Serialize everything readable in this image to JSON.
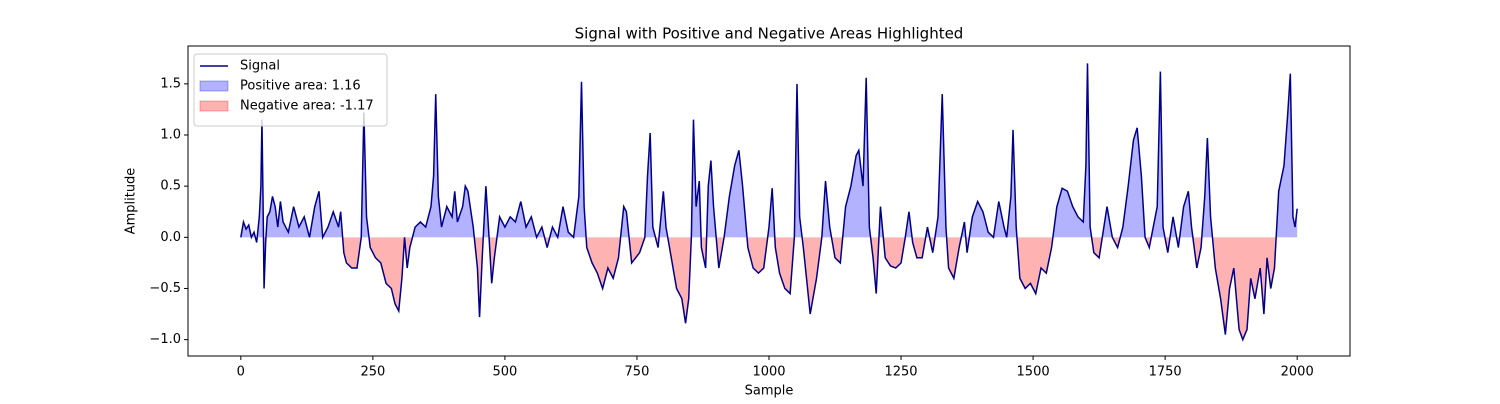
{
  "chart_data": {
    "type": "line",
    "title": "Signal with Positive and Negative Areas Highlighted",
    "xlabel": "Sample",
    "ylabel": "Amplitude",
    "xlim": [
      -100,
      2100
    ],
    "ylim": [
      -1.16,
      1.87
    ],
    "xticks": [
      0,
      250,
      500,
      750,
      1000,
      1250,
      1500,
      1750,
      2000
    ],
    "yticks": [
      {
        "value": -1,
        "label": "−1.0"
      },
      {
        "value": -0.5,
        "label": "−0.5"
      },
      {
        "value": 0,
        "label": "0.0"
      },
      {
        "value": 0.5,
        "label": "0.5"
      },
      {
        "value": 1,
        "label": "1.0"
      },
      {
        "value": 1.5,
        "label": "1.5"
      }
    ],
    "legend": "upper left",
    "fills": [
      {
        "name": "Positive area: 1.16",
        "color": "#0000ff",
        "where": "above"
      },
      {
        "name": "Negative area: -1.17",
        "color": "#ff0000",
        "where": "below"
      }
    ],
    "series": [
      {
        "name": "Signal",
        "color": "#00008b",
        "x": [
          0,
          5,
          10,
          15,
          20,
          25,
          30,
          35,
          38,
          40,
          42,
          44,
          47,
          50,
          55,
          60,
          65,
          70,
          75,
          80,
          90,
          100,
          110,
          120,
          130,
          140,
          148,
          155,
          165,
          175,
          185,
          189,
          195,
          200,
          210,
          220,
          228,
          233,
          238,
          245,
          255,
          265,
          275,
          285,
          292,
          299,
          305,
          310,
          315,
          320,
          330,
          340,
          350,
          360,
          365,
          369,
          374,
          380,
          390,
          400,
          405,
          410,
          420,
          425,
          430,
          440,
          448,
          452,
          457,
          464,
          470,
          475,
          480,
          490,
          500,
          510,
          520,
          530,
          540,
          550,
          560,
          570,
          580,
          590,
          600,
          610,
          620,
          630,
          640,
          645,
          650,
          655,
          665,
          675,
          685,
          695,
          705,
          715,
          725,
          730,
          740,
          755,
          765,
          770,
          775,
          780,
          790,
          800,
          805,
          815,
          825,
          835,
          842,
          848,
          853,
          857,
          862,
          868,
          872,
          880,
          885,
          890,
          895,
          905,
          915,
          925,
          935,
          943,
          950,
          960,
          970,
          980,
          990,
          1000,
          1006,
          1012,
          1020,
          1030,
          1040,
          1048,
          1053,
          1058,
          1065,
          1072,
          1078,
          1090,
          1100,
          1107,
          1115,
          1125,
          1135,
          1145,
          1155,
          1165,
          1170,
          1178,
          1184,
          1190,
          1197,
          1203,
          1211,
          1220,
          1230,
          1240,
          1250,
          1258,
          1265,
          1272,
          1280,
          1290,
          1300,
          1310,
          1320,
          1328,
          1335,
          1340,
          1350,
          1360,
          1370,
          1375,
          1385,
          1395,
          1405,
          1415,
          1425,
          1435,
          1445,
          1450,
          1458,
          1462,
          1468,
          1475,
          1485,
          1495,
          1505,
          1515,
          1525,
          1535,
          1545,
          1555,
          1565,
          1575,
          1585,
          1595,
          1600,
          1603,
          1608,
          1615,
          1625,
          1640,
          1650,
          1660,
          1670,
          1680,
          1690,
          1697,
          1705,
          1712,
          1720,
          1735,
          1741,
          1746,
          1755,
          1765,
          1775,
          1785,
          1794,
          1800,
          1810,
          1818,
          1825,
          1830,
          1836,
          1845,
          1855,
          1864,
          1872,
          1880,
          1890,
          1897,
          1905,
          1912,
          1920,
          1930,
          1937,
          1943,
          1950,
          1957,
          1965,
          1975,
          1982,
          1987,
          1992,
          1996,
          2000
        ],
        "values": [
          0,
          0.15,
          0.08,
          0.12,
          0,
          0.05,
          -0.05,
          0.2,
          0.5,
          1.15,
          0.4,
          -0.5,
          -0.05,
          0.2,
          0.25,
          0.4,
          0.3,
          0.1,
          0.35,
          0.15,
          0.05,
          0.3,
          0.1,
          0.2,
          0,
          0.3,
          0.45,
          0,
          0.1,
          0.25,
          0.1,
          0.25,
          -0.15,
          -0.25,
          -0.3,
          -0.3,
          0,
          1.22,
          0.2,
          -0.1,
          -0.2,
          -0.25,
          -0.45,
          -0.5,
          -0.65,
          -0.72,
          -0.4,
          0,
          -0.3,
          -0.1,
          0.1,
          0.15,
          0.1,
          0.3,
          0.6,
          1.4,
          0.4,
          0.1,
          0.3,
          0.2,
          0.45,
          0.15,
          0.3,
          0.5,
          0.45,
          0.1,
          -0.3,
          -0.78,
          -0.2,
          0.5,
          0,
          -0.45,
          -0.2,
          0.2,
          0.1,
          0.2,
          0.15,
          0.35,
          0.1,
          0.2,
          0,
          0.1,
          -0.1,
          0.1,
          0,
          0.3,
          0.05,
          0,
          0.4,
          1.52,
          0.3,
          -0.1,
          -0.25,
          -0.35,
          -0.5,
          -0.3,
          -0.4,
          -0.2,
          0.3,
          0.25,
          -0.25,
          -0.15,
          0,
          0.6,
          1.02,
          0.1,
          -0.1,
          0.45,
          0.1,
          -0.2,
          -0.5,
          -0.6,
          -0.84,
          -0.6,
          0,
          1.15,
          0.3,
          0.55,
          -0.1,
          -0.3,
          0.5,
          0.75,
          0.3,
          -0.3,
          0,
          0.4,
          0.7,
          0.85,
          0.5,
          -0.1,
          -0.3,
          -0.35,
          -0.3,
          0.1,
          0.48,
          -0.1,
          -0.35,
          -0.5,
          -0.55,
          0,
          1.5,
          0.2,
          -0.1,
          -0.45,
          -0.75,
          -0.4,
          0,
          0.55,
          0.1,
          -0.2,
          -0.25,
          0.3,
          0.5,
          0.8,
          0.85,
          0.5,
          1.56,
          0.1,
          -0.2,
          -0.55,
          0.3,
          -0.2,
          -0.28,
          -0.3,
          -0.25,
          0,
          0.25,
          -0.05,
          -0.2,
          -0.2,
          0.1,
          -0.15,
          0.2,
          1.4,
          0.1,
          -0.3,
          -0.4,
          -0.1,
          0.15,
          -0.15,
          0.2,
          0.35,
          0.25,
          0.05,
          0,
          0.35,
          0.1,
          0,
          0.4,
          1.05,
          0.1,
          -0.4,
          -0.5,
          -0.45,
          -0.55,
          -0.3,
          -0.35,
          -0.1,
          0.3,
          0.48,
          0.45,
          0.3,
          0.2,
          0.15,
          0.7,
          1.7,
          0.1,
          -0.15,
          -0.2,
          0.3,
          0,
          -0.1,
          0.1,
          0.5,
          0.95,
          1.07,
          0.6,
          0,
          -0.1,
          0.3,
          1.62,
          0.1,
          -0.15,
          0.2,
          -0.1,
          0.3,
          0.45,
          0.1,
          -0.3,
          -0.1,
          0.4,
          0.97,
          0.2,
          -0.3,
          -0.6,
          -0.95,
          -0.5,
          -0.3,
          -0.9,
          -1.0,
          -0.9,
          -0.4,
          -0.6,
          -0.3,
          -0.75,
          -0.2,
          -0.5,
          -0.3,
          0.45,
          0.7,
          1.2,
          1.6,
          0.2,
          0.1,
          0.28
        ]
      }
    ]
  }
}
